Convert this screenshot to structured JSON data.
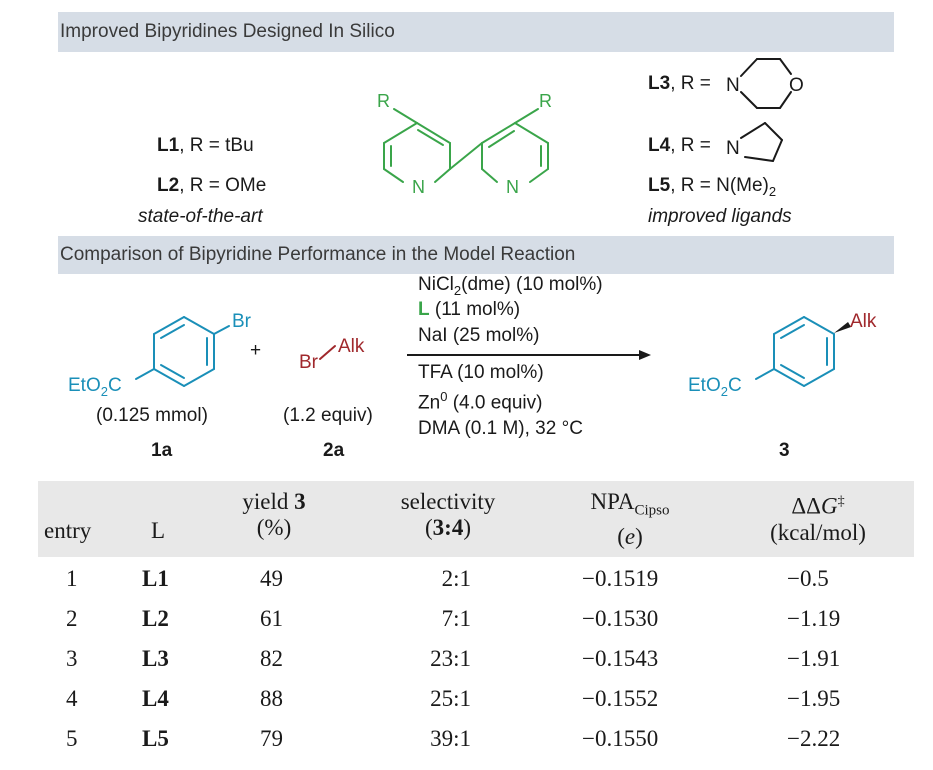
{
  "sections": {
    "designed_title": "Improved Bipyridines Designed In Silico",
    "comparison_title": "Comparison of Bipyridine Performance in the Model Reaction"
  },
  "ligands_left": {
    "l1_name": "L1",
    "l1_r": ", R = tBu",
    "l2_name": "L2",
    "l2_r": ", R = OMe",
    "caption": "state-of-the-art"
  },
  "bipyridine": {
    "r_label": "R",
    "n_label": "N"
  },
  "ligands_right": {
    "l3_name": "L3",
    "l3_r": ", R = ",
    "l4_name": "L4",
    "l4_r": ", R = ",
    "l5_name": "L5",
    "l5_r": ", R = N(Me)",
    "l5_sub": "2",
    "morpholine_n": "N",
    "morpholine_o": "O",
    "pyrrolidine_n": "N",
    "caption": "improved ligands"
  },
  "reaction": {
    "substrate_br": "Br",
    "substrate_ester": "EtO",
    "ester_sub": "2",
    "ester_c": "C",
    "substrate_amount": "(0.125 mmol)",
    "substrate_id": "1a",
    "plus": "+",
    "halide_br": "Br",
    "halide_alk": "Alk",
    "halide_amount": "(1.2 equiv)",
    "halide_id": "2a",
    "cond_1a": "NiCl",
    "cond_1sub": "2",
    "cond_1b": "(dme) (10 mol%)",
    "cond_2l": "L",
    "cond_2": " (11 mol%)",
    "cond_3": "NaI (25 mol%)",
    "cond_4": "TFA (10 mol%)",
    "cond_5a": "Zn",
    "cond_5sup": "0",
    "cond_5b": " (4.0 equiv)",
    "cond_6": "DMA (0.1 M), 32 °C",
    "product_alk": "Alk",
    "product_id": "3"
  },
  "colors": {
    "green": "#3aa54a",
    "blue": "#1a8fb8",
    "red": "#a0282c",
    "section_bar": "#d6dde6",
    "table_header": "#e8e8e8"
  },
  "table": {
    "headers": {
      "entry": "entry",
      "l": "L",
      "yield_a": "yield ",
      "yield_b": "3",
      "yield_c": "(%)",
      "sel_a": "selectivity",
      "sel_b": "(",
      "sel_c": "3:4",
      "sel_d": ")",
      "npa_a": "NPA",
      "npa_sub": "Cipso",
      "npa_b": "(",
      "npa_e": "e",
      "npa_c": ")",
      "ddg_a": "ΔΔ",
      "ddg_g": "G",
      "ddg_sup": "‡",
      "ddg_b": "(kcal/mol)"
    },
    "rows": [
      [
        "1",
        "L1",
        "49",
        "2:1",
        "−0.1519",
        "−0.5"
      ],
      [
        "2",
        "L2",
        "61",
        "7:1",
        "−0.1530",
        "−1.19"
      ],
      [
        "3",
        "L3",
        "82",
        "23:1",
        "−0.1543",
        "−1.91"
      ],
      [
        "4",
        "L4",
        "88",
        "25:1",
        "−0.1552",
        "−1.95"
      ],
      [
        "5",
        "L5",
        "79",
        "39:1",
        "−0.1550",
        "−2.22"
      ]
    ]
  }
}
